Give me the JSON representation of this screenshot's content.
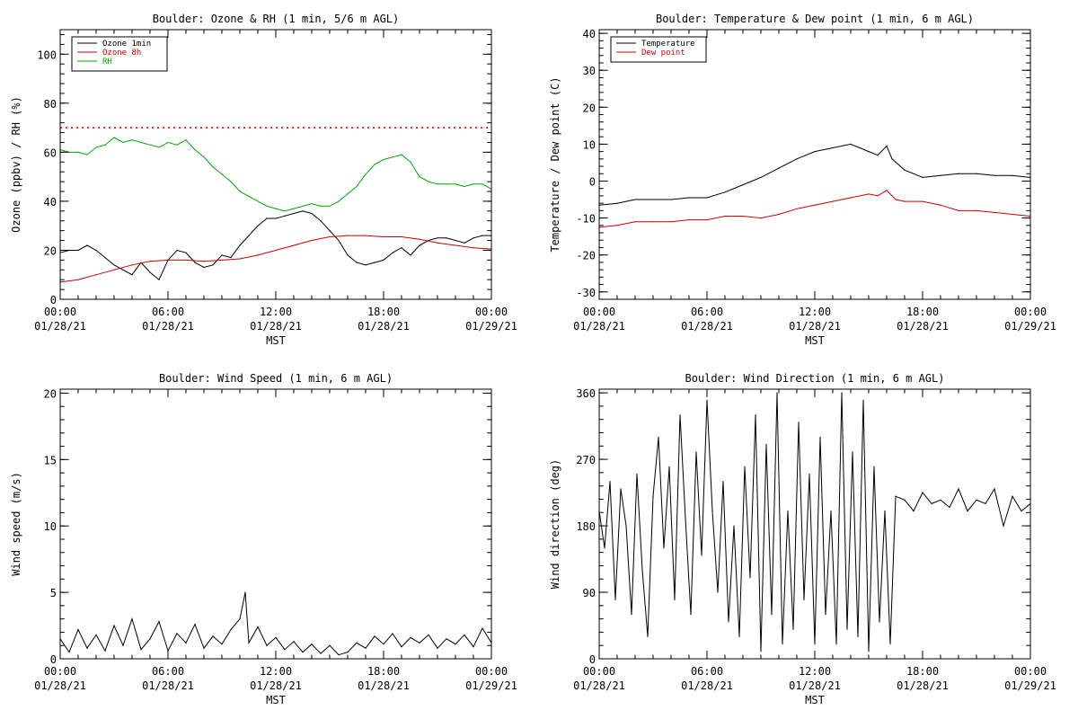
{
  "chart_data": [
    {
      "id": "ozone_rh",
      "type": "line",
      "title": "Boulder: Ozone & RH (1 min, 5/6 m AGL)",
      "xlabel": "MST",
      "ylabel": "Ozone (ppbv) / RH (%)",
      "xlim": [
        0,
        24
      ],
      "ylim": [
        0,
        110
      ],
      "xticks": [
        {
          "value": 0,
          "time": "00:00",
          "date": "01/28/21"
        },
        {
          "value": 6,
          "time": "06:00",
          "date": "01/28/21"
        },
        {
          "value": 12,
          "time": "12:00",
          "date": "01/28/21"
        },
        {
          "value": 18,
          "time": "18:00",
          "date": "01/28/21"
        },
        {
          "value": 24,
          "time": "00:00",
          "date": "01/29/21"
        }
      ],
      "yticks": [
        0,
        20,
        40,
        60,
        80,
        100
      ],
      "legend_position": "top-left",
      "reference_line": {
        "y": 70,
        "color": "#ff0000",
        "style": "dotted"
      },
      "series": [
        {
          "name": "Ozone 1min",
          "color": "#000000",
          "x": [
            0,
            0.5,
            1,
            1.5,
            2,
            2.5,
            3,
            3.5,
            4,
            4.5,
            5,
            5.5,
            6,
            6.5,
            7,
            7.5,
            8,
            8.5,
            9,
            9.5,
            10,
            10.5,
            11,
            11.5,
            12,
            12.5,
            13,
            13.5,
            14,
            14.5,
            15,
            15.5,
            16,
            16.5,
            17,
            17.5,
            18,
            18.5,
            19,
            19.5,
            20,
            20.5,
            21,
            21.5,
            22,
            22.5,
            23,
            23.5,
            24
          ],
          "y": [
            19,
            20,
            20,
            22,
            20,
            17,
            14,
            12,
            10,
            15,
            11,
            8,
            16,
            20,
            19,
            15,
            13,
            14,
            18,
            17,
            22,
            26,
            30,
            33,
            33,
            34,
            35,
            36,
            35,
            32,
            28,
            24,
            18,
            15,
            14,
            15,
            16,
            19,
            21,
            18,
            22,
            24,
            25,
            25,
            24,
            23,
            25,
            26,
            26
          ]
        },
        {
          "name": "Ozone 8h",
          "color": "#cc0000",
          "x": [
            0,
            1,
            2,
            3,
            4,
            5,
            6,
            7,
            8,
            9,
            10,
            11,
            12,
            13,
            14,
            15,
            16,
            17,
            18,
            19,
            20,
            21,
            22,
            23,
            24
          ],
          "y": [
            7,
            8,
            10,
            12,
            14,
            15.5,
            16,
            16,
            15.5,
            16,
            16.5,
            18,
            20,
            22,
            24,
            25.5,
            26,
            26,
            25.5,
            25.5,
            24.5,
            23,
            22,
            21,
            20.5
          ]
        },
        {
          "name": "RH",
          "color": "#00aa00",
          "x": [
            0,
            0.5,
            1,
            1.5,
            2,
            2.5,
            3,
            3.5,
            4,
            4.5,
            5,
            5.5,
            6,
            6.5,
            7,
            7.5,
            8,
            8.5,
            9,
            9.5,
            10,
            10.5,
            11,
            11.5,
            12,
            12.5,
            13,
            13.5,
            14,
            14.5,
            15,
            15.5,
            16,
            16.5,
            17,
            17.5,
            18,
            18.5,
            19,
            19.5,
            20,
            20.5,
            21,
            21.5,
            22,
            22.5,
            23,
            23.5,
            24
          ],
          "y": [
            61,
            60,
            60,
            59,
            62,
            63,
            66,
            64,
            65,
            64,
            63,
            62,
            64,
            63,
            65,
            61,
            58,
            54,
            51,
            48,
            44,
            42,
            40,
            38,
            37,
            36,
            37,
            38,
            39,
            38,
            38,
            40,
            43,
            46,
            51,
            55,
            57,
            58,
            59,
            56,
            50,
            48,
            47,
            47,
            47,
            46,
            47,
            47,
            45
          ]
        }
      ]
    },
    {
      "id": "temp_dew",
      "type": "line",
      "title": "Boulder: Temperature & Dew point (1 min, 6 m AGL)",
      "xlabel": "MST",
      "ylabel": "Temperature / Dew point (C)",
      "xlim": [
        0,
        24
      ],
      "ylim": [
        -32,
        41
      ],
      "xticks": [
        {
          "value": 0,
          "time": "00:00",
          "date": "01/28/21"
        },
        {
          "value": 6,
          "time": "06:00",
          "date": "01/28/21"
        },
        {
          "value": 12,
          "time": "12:00",
          "date": "01/28/21"
        },
        {
          "value": 18,
          "time": "18:00",
          "date": "01/28/21"
        },
        {
          "value": 24,
          "time": "00:00",
          "date": "01/29/21"
        }
      ],
      "yticks": [
        -30,
        -20,
        -10,
        0,
        10,
        20,
        30,
        40
      ],
      "legend_position": "top-left",
      "series": [
        {
          "name": "Temperature",
          "color": "#000000",
          "x": [
            0,
            1,
            2,
            3,
            4,
            5,
            6,
            7,
            8,
            9,
            10,
            11,
            12,
            13,
            14,
            14.5,
            15,
            15.5,
            16,
            16.3,
            17,
            18,
            19,
            20,
            21,
            22,
            23,
            24
          ],
          "y": [
            -6.5,
            -6,
            -5,
            -5,
            -5,
            -4.5,
            -4.5,
            -3,
            -1,
            1,
            3.5,
            6,
            8,
            9,
            10,
            9,
            8,
            7,
            9.5,
            6,
            3,
            1,
            1.5,
            2,
            2,
            1.5,
            1.5,
            1
          ]
        },
        {
          "name": "Dew point",
          "color": "#cc0000",
          "x": [
            0,
            1,
            2,
            3,
            4,
            5,
            6,
            7,
            8,
            9,
            10,
            11,
            12,
            13,
            14,
            15,
            15.5,
            16,
            16.5,
            17,
            18,
            19,
            20,
            21,
            22,
            23,
            24
          ],
          "y": [
            -12.5,
            -12,
            -11,
            -11,
            -11,
            -10.5,
            -10.5,
            -9.5,
            -9.5,
            -10,
            -9,
            -7.5,
            -6.5,
            -5.5,
            -4.5,
            -3.5,
            -4,
            -2.5,
            -5,
            -5.5,
            -5.5,
            -6.5,
            -8,
            -8,
            -8.5,
            -9,
            -9.5
          ]
        }
      ]
    },
    {
      "id": "wind_speed",
      "type": "line",
      "title": "Boulder: Wind Speed (1 min, 6 m AGL)",
      "xlabel": "MST",
      "ylabel": "Wind speed (m/s)",
      "xlim": [
        0,
        24
      ],
      "ylim": [
        0,
        20.3
      ],
      "xticks": [
        {
          "value": 0,
          "time": "00:00",
          "date": "01/28/21"
        },
        {
          "value": 6,
          "time": "06:00",
          "date": "01/28/21"
        },
        {
          "value": 12,
          "time": "12:00",
          "date": "01/28/21"
        },
        {
          "value": 18,
          "time": "18:00",
          "date": "01/28/21"
        },
        {
          "value": 24,
          "time": "00:00",
          "date": "01/29/21"
        }
      ],
      "yticks": [
        0,
        5,
        10,
        15,
        20
      ],
      "series": [
        {
          "name": "",
          "color": "#000000",
          "x": [
            0,
            0.5,
            1,
            1.5,
            2,
            2.5,
            3,
            3.5,
            4,
            4.5,
            5,
            5.5,
            6,
            6.5,
            7,
            7.5,
            8,
            8.5,
            9,
            9.5,
            10,
            10.3,
            10.5,
            11,
            11.5,
            12,
            12.5,
            13,
            13.5,
            14,
            14.5,
            15,
            15.5,
            16,
            16.5,
            17,
            17.5,
            18,
            18.5,
            19,
            19.5,
            20,
            20.5,
            21,
            21.5,
            22,
            22.5,
            23,
            23.5,
            24
          ],
          "y": [
            1.5,
            0.5,
            2.2,
            0.8,
            1.8,
            0.6,
            2.5,
            1,
            3,
            0.7,
            1.5,
            2.8,
            0.6,
            1.9,
            1.2,
            2.6,
            0.8,
            1.7,
            1.1,
            2.2,
            3,
            5,
            1.2,
            2.4,
            1,
            1.6,
            0.7,
            1.3,
            0.5,
            1.1,
            0.4,
            1,
            0.3,
            0.5,
            1.2,
            0.8,
            1.7,
            1.1,
            1.9,
            0.9,
            1.6,
            1.2,
            1.8,
            0.8,
            1.5,
            1.1,
            1.8,
            0.9,
            2.3,
            1.2
          ]
        }
      ]
    },
    {
      "id": "wind_dir",
      "type": "line",
      "title": "Boulder: Wind Direction (1 min, 6 m AGL)",
      "xlabel": "MST",
      "ylabel": "Wind direction (deg)",
      "xlim": [
        0,
        24
      ],
      "ylim": [
        0,
        365
      ],
      "xticks": [
        {
          "value": 0,
          "time": "00:00",
          "date": "01/28/21"
        },
        {
          "value": 6,
          "time": "06:00",
          "date": "01/28/21"
        },
        {
          "value": 12,
          "time": "12:00",
          "date": "01/28/21"
        },
        {
          "value": 18,
          "time": "18:00",
          "date": "01/28/21"
        },
        {
          "value": 24,
          "time": "00:00",
          "date": "01/29/21"
        }
      ],
      "yticks": [
        0,
        90,
        180,
        270,
        360
      ],
      "series": [
        {
          "name": "",
          "color": "#000000",
          "x": [
            0,
            0.3,
            0.6,
            0.9,
            1.2,
            1.5,
            1.8,
            2.1,
            2.4,
            2.7,
            3,
            3.3,
            3.6,
            3.9,
            4.2,
            4.5,
            4.8,
            5.1,
            5.4,
            5.7,
            6,
            6.3,
            6.6,
            6.9,
            7.2,
            7.5,
            7.8,
            8.1,
            8.4,
            8.7,
            9,
            9.3,
            9.6,
            9.9,
            10.2,
            10.5,
            10.8,
            11.1,
            11.4,
            11.7,
            12,
            12.3,
            12.6,
            12.9,
            13.2,
            13.5,
            13.8,
            14.1,
            14.4,
            14.7,
            15,
            15.3,
            15.6,
            15.9,
            16.2,
            16.5,
            17,
            17.5,
            18,
            18.5,
            19,
            19.5,
            20,
            20.5,
            21,
            21.5,
            22,
            22.5,
            23,
            23.5,
            24
          ],
          "y": [
            200,
            150,
            240,
            80,
            230,
            180,
            60,
            250,
            120,
            30,
            220,
            300,
            150,
            260,
            80,
            330,
            190,
            60,
            280,
            140,
            350,
            200,
            90,
            240,
            50,
            180,
            30,
            260,
            110,
            330,
            10,
            290,
            60,
            360,
            20,
            200,
            40,
            320,
            80,
            250,
            20,
            300,
            60,
            200,
            20,
            360,
            40,
            280,
            30,
            350,
            10,
            260,
            50,
            200,
            20,
            220,
            215,
            200,
            225,
            210,
            215,
            205,
            230,
            200,
            215,
            210,
            230,
            180,
            220,
            200,
            210
          ]
        }
      ]
    }
  ]
}
